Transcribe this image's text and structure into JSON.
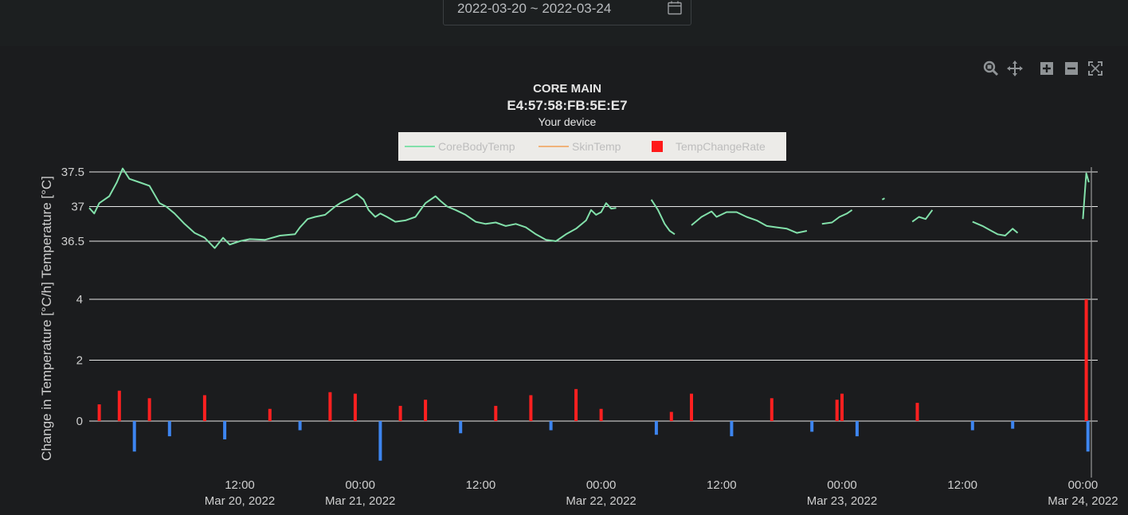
{
  "date_range": {
    "value": "2022-03-20 ~ 2022-03-24",
    "icon": "calendar-icon"
  },
  "modebar": {
    "buttons": [
      {
        "name": "zoom-icon"
      },
      {
        "name": "pan-icon"
      },
      {
        "name": "zoom-in-icon"
      },
      {
        "name": "zoom-out-icon"
      },
      {
        "name": "autoscale-icon"
      }
    ]
  },
  "header": {
    "title": "CORE MAIN",
    "device_id": "E4:57:58:FB:5E:E7",
    "subtitle": "Your device"
  },
  "legend": [
    {
      "label": "CoreBodyTemp",
      "color": "#82e0aa",
      "kind": "line"
    },
    {
      "label": "SkinTemp",
      "color": "#f0b27a",
      "kind": "line"
    },
    {
      "label": "TempChangeRate",
      "color": "#ff1a1a",
      "kind": "square"
    }
  ],
  "y_axis_title": "Change in Temperature [°C/h] Temperature [°C]",
  "colors": {
    "core": "#82e0aa",
    "rate_pos": "#ff2020",
    "rate_neg": "#3d85f0",
    "grid": "#e8e8e8"
  },
  "chart_data": [
    {
      "type": "line",
      "name": "temperature-panel",
      "ylim": [
        36.5,
        37.5
      ],
      "yticks": [
        "37.5",
        "37",
        "36.5"
      ],
      "x_range": [
        "2022-03-19 21:00",
        "2022-03-24 01:00"
      ],
      "xticks": [
        {
          "t": "2022-03-20 12:00",
          "l1": "12:00",
          "l2": "Mar 20, 2022"
        },
        {
          "t": "2022-03-21 00:00",
          "l1": "00:00",
          "l2": "Mar 21, 2022"
        },
        {
          "t": "2022-03-21 12:00",
          "l1": "12:00",
          "l2": ""
        },
        {
          "t": "2022-03-22 00:00",
          "l1": "00:00",
          "l2": "Mar 22, 2022"
        },
        {
          "t": "2022-03-22 12:00",
          "l1": "12:00",
          "l2": ""
        },
        {
          "t": "2022-03-23 00:00",
          "l1": "00:00",
          "l2": "Mar 23, 2022"
        },
        {
          "t": "2022-03-23 12:00",
          "l1": "12:00",
          "l2": ""
        },
        {
          "t": "2022-03-24 00:00",
          "l1": "00:00",
          "l2": "Mar 24, 2022"
        }
      ],
      "series": [
        {
          "name": "CoreBodyTemp",
          "segments": [
            [
              [
                "2022-03-19 21:00",
                36.98
              ],
              [
                "2022-03-19 21:30",
                36.9
              ],
              [
                "2022-03-19 22:00",
                37.05
              ],
              [
                "2022-03-19 23:00",
                37.15
              ],
              [
                "2022-03-19 23:45",
                37.35
              ],
              [
                "2022-03-20 00:20",
                37.55
              ],
              [
                "2022-03-20 01:00",
                37.4
              ],
              [
                "2022-03-20 02:00",
                37.35
              ],
              [
                "2022-03-20 03:00",
                37.3
              ],
              [
                "2022-03-20 04:00",
                37.05
              ],
              [
                "2022-03-20 04:40",
                37.0
              ],
              [
                "2022-03-20 05:30",
                36.9
              ],
              [
                "2022-03-20 06:30",
                36.75
              ],
              [
                "2022-03-20 07:30",
                36.62
              ],
              [
                "2022-03-20 08:30",
                36.55
              ],
              [
                "2022-03-20 09:30",
                36.4
              ],
              [
                "2022-03-20 10:20",
                36.55
              ],
              [
                "2022-03-20 11:00",
                36.45
              ],
              [
                "2022-03-20 12:00",
                36.5
              ],
              [
                "2022-03-20 13:00",
                36.53
              ],
              [
                "2022-03-20 14:30",
                36.52
              ],
              [
                "2022-03-20 16:00",
                36.58
              ],
              [
                "2022-03-20 17:30",
                36.6
              ],
              [
                "2022-03-20 18:00",
                36.7
              ],
              [
                "2022-03-20 18:45",
                36.82
              ],
              [
                "2022-03-20 19:30",
                36.85
              ],
              [
                "2022-03-20 20:30",
                36.88
              ],
              [
                "2022-03-20 21:30",
                37.0
              ],
              [
                "2022-03-20 22:00",
                37.05
              ],
              [
                "2022-03-20 23:00",
                37.12
              ],
              [
                "2022-03-20 23:40",
                37.18
              ],
              [
                "2022-03-21 00:20",
                37.1
              ],
              [
                "2022-03-21 00:50",
                36.95
              ],
              [
                "2022-03-21 01:30",
                36.85
              ],
              [
                "2022-03-21 02:00",
                36.9
              ],
              [
                "2022-03-21 02:40",
                36.85
              ],
              [
                "2022-03-21 03:30",
                36.78
              ],
              [
                "2022-03-21 04:30",
                36.8
              ],
              [
                "2022-03-21 05:30",
                36.85
              ],
              [
                "2022-03-21 06:30",
                37.05
              ],
              [
                "2022-03-21 07:30",
                37.15
              ],
              [
                "2022-03-21 08:00",
                37.08
              ],
              [
                "2022-03-21 08:40",
                37.0
              ],
              [
                "2022-03-21 09:30",
                36.95
              ],
              [
                "2022-03-21 10:30",
                36.88
              ],
              [
                "2022-03-21 11:30",
                36.78
              ],
              [
                "2022-03-21 12:30",
                36.75
              ],
              [
                "2022-03-21 13:30",
                36.77
              ],
              [
                "2022-03-21 14:30",
                36.72
              ],
              [
                "2022-03-21 15:30",
                36.75
              ],
              [
                "2022-03-21 16:30",
                36.7
              ],
              [
                "2022-03-21 17:30",
                36.6
              ],
              [
                "2022-03-21 18:30",
                36.52
              ],
              [
                "2022-03-21 19:30",
                36.5
              ],
              [
                "2022-03-21 20:30",
                36.6
              ],
              [
                "2022-03-21 21:30",
                36.68
              ],
              [
                "2022-03-21 22:30",
                36.8
              ],
              [
                "2022-03-21 23:00",
                36.95
              ],
              [
                "2022-03-21 23:30",
                36.88
              ],
              [
                "2022-03-22 00:00",
                36.92
              ],
              [
                "2022-03-22 00:30",
                37.05
              ],
              [
                "2022-03-22 01:00",
                36.97
              ],
              [
                "2022-03-22 01:30",
                36.98
              ]
            ],
            [
              [
                "2022-03-22 05:00",
                37.1
              ],
              [
                "2022-03-22 05:40",
                36.95
              ],
              [
                "2022-03-22 06:20",
                36.75
              ],
              [
                "2022-03-22 06:50",
                36.65
              ],
              [
                "2022-03-22 07:20",
                36.6
              ]
            ],
            [
              [
                "2022-03-22 09:00",
                36.73
              ],
              [
                "2022-03-22 10:00",
                36.85
              ],
              [
                "2022-03-22 11:00",
                36.93
              ],
              [
                "2022-03-22 11:30",
                36.85
              ],
              [
                "2022-03-22 12:30",
                36.92
              ],
              [
                "2022-03-22 13:30",
                36.92
              ],
              [
                "2022-03-22 14:30",
                36.85
              ],
              [
                "2022-03-22 15:30",
                36.8
              ],
              [
                "2022-03-22 16:30",
                36.72
              ],
              [
                "2022-03-22 17:30",
                36.7
              ],
              [
                "2022-03-22 18:30",
                36.68
              ],
              [
                "2022-03-22 19:30",
                36.62
              ],
              [
                "2022-03-22 20:30",
                36.65
              ]
            ],
            [
              [
                "2022-03-22 22:00",
                36.75
              ],
              [
                "2022-03-22 23:00",
                36.77
              ],
              [
                "2022-03-22 23:45",
                36.85
              ],
              [
                "2022-03-23 00:30",
                36.9
              ],
              [
                "2022-03-23 01:00",
                36.95
              ]
            ],
            [
              [
                "2022-03-23 04:00",
                37.1
              ],
              [
                "2022-03-23 04:15",
                37.12
              ]
            ],
            [
              [
                "2022-03-23 07:00",
                36.78
              ],
              [
                "2022-03-23 07:40",
                36.85
              ],
              [
                "2022-03-23 08:20",
                36.82
              ],
              [
                "2022-03-23 09:00",
                36.95
              ]
            ],
            [
              [
                "2022-03-23 13:00",
                36.78
              ],
              [
                "2022-03-23 14:00",
                36.72
              ],
              [
                "2022-03-23 14:45",
                36.66
              ],
              [
                "2022-03-23 15:30",
                36.6
              ],
              [
                "2022-03-23 16:15",
                36.58
              ],
              [
                "2022-03-23 17:00",
                36.68
              ],
              [
                "2022-03-23 17:30",
                36.62
              ]
            ],
            [
              [
                "2022-03-24 00:00",
                36.82
              ],
              [
                "2022-03-24 00:20",
                37.48
              ],
              [
                "2022-03-24 00:35",
                37.35
              ]
            ]
          ]
        }
      ]
    },
    {
      "type": "bar",
      "name": "rate-panel",
      "yticks": [
        "4",
        "2",
        "0"
      ],
      "ylim": [
        -1.8,
        4.1
      ],
      "series": [
        {
          "name": "TempChangeRate",
          "x": [
            "2022-03-19 22:00",
            "2022-03-20 00:00",
            "2022-03-20 01:30",
            "2022-03-20 03:00",
            "2022-03-20 05:00",
            "2022-03-20 08:30",
            "2022-03-20 10:30",
            "2022-03-20 15:00",
            "2022-03-20 18:00",
            "2022-03-20 21:00",
            "2022-03-20 23:30",
            "2022-03-21 02:00",
            "2022-03-21 04:00",
            "2022-03-21 06:30",
            "2022-03-21 10:00",
            "2022-03-21 13:30",
            "2022-03-21 17:00",
            "2022-03-21 19:00",
            "2022-03-21 21:30",
            "2022-03-22 00:00",
            "2022-03-22 05:30",
            "2022-03-22 07:00",
            "2022-03-22 09:00",
            "2022-03-22 13:00",
            "2022-03-22 17:00",
            "2022-03-22 21:00",
            "2022-03-22 23:30",
            "2022-03-23 00:00",
            "2022-03-23 01:30",
            "2022-03-23 07:30",
            "2022-03-23 13:00",
            "2022-03-23 17:00",
            "2022-03-24 00:20",
            "2022-03-24 00:30"
          ],
          "values": [
            0.55,
            1.0,
            -1.0,
            0.75,
            -0.5,
            0.85,
            -0.6,
            0.4,
            -0.3,
            0.95,
            0.9,
            -1.3,
            0.5,
            0.7,
            -0.4,
            0.5,
            0.85,
            -0.3,
            1.05,
            0.4,
            -0.45,
            0.3,
            0.9,
            -0.5,
            0.75,
            -0.35,
            0.7,
            0.9,
            -0.5,
            0.6,
            -0.3,
            -0.25,
            4.0,
            -1.0
          ]
        }
      ]
    }
  ]
}
